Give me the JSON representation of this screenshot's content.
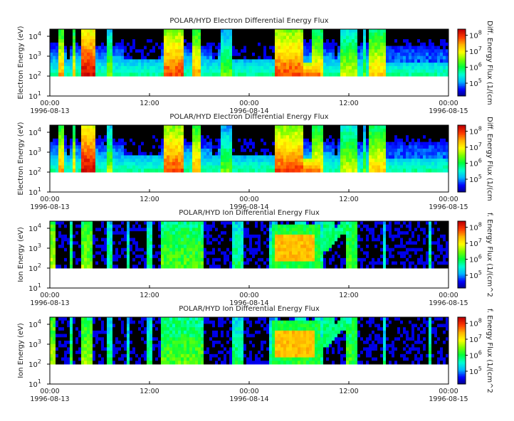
{
  "chart_data": [
    {
      "type": "heatmap",
      "title": "POLAR/HYD  Electron Differential Energy Flux",
      "ylabel": "Electron Energy (eV)",
      "colorbar_label": "Diff. Energy Flux (1/(cm",
      "species": "electron",
      "y_scale": "log",
      "ylim": [
        10,
        20000
      ],
      "data_floor": 100,
      "y_ticks": [
        "10^1",
        "10^2",
        "10^3",
        "10^4"
      ],
      "cbar_ticks": [
        "10^5",
        "10^6",
        "10^7",
        "10^8"
      ],
      "cbar_range": [
        10000,
        200000000
      ],
      "x_ticks": [
        {
          "time": "00:00",
          "date": "1996-08-13"
        },
        {
          "time": "12:00",
          "date": ""
        },
        {
          "time": "00:00",
          "date": "1996-08-14"
        },
        {
          "time": "12:00",
          "date": ""
        },
        {
          "time": "00:00",
          "date": "1996-08-15"
        }
      ],
      "xlim": [
        "1996-08-13 00:00",
        "1996-08-15 00:00"
      ]
    },
    {
      "type": "heatmap",
      "title": "POLAR/HYD  Electron Differential Energy Flux",
      "ylabel": "Electron Energy (eV)",
      "colorbar_label": "Diff. Energy Flux (1/(cm",
      "species": "electron",
      "y_scale": "log",
      "ylim": [
        10,
        20000
      ],
      "data_floor": 100,
      "y_ticks": [
        "10^1",
        "10^2",
        "10^3",
        "10^4"
      ],
      "cbar_ticks": [
        "10^5",
        "10^6",
        "10^7",
        "10^8"
      ],
      "cbar_range": [
        10000,
        200000000
      ],
      "x_ticks": [
        {
          "time": "00:00",
          "date": "1996-08-13"
        },
        {
          "time": "12:00",
          "date": ""
        },
        {
          "time": "00:00",
          "date": "1996-08-14"
        },
        {
          "time": "12:00",
          "date": ""
        },
        {
          "time": "00:00",
          "date": "1996-08-15"
        }
      ],
      "xlim": [
        "1996-08-13 00:00",
        "1996-08-15 00:00"
      ]
    },
    {
      "type": "heatmap",
      "title": "POLAR/HYD  Ion Differential Energy Flux",
      "ylabel": "Ion Energy (eV)",
      "colorbar_label": "f. Energy Flux (1/(cm^2",
      "species": "ion",
      "y_scale": "log",
      "ylim": [
        10,
        20000
      ],
      "data_floor": 100,
      "y_ticks": [
        "10^1",
        "10^2",
        "10^3",
        "10^4"
      ],
      "cbar_ticks": [
        "10^5",
        "10^6",
        "10^7",
        "10^8"
      ],
      "cbar_range": [
        10000,
        200000000
      ],
      "x_ticks": [
        {
          "time": "00:00",
          "date": "1996-08-13"
        },
        {
          "time": "12:00",
          "date": ""
        },
        {
          "time": "00:00",
          "date": "1996-08-14"
        },
        {
          "time": "12:00",
          "date": ""
        },
        {
          "time": "00:00",
          "date": "1996-08-15"
        }
      ],
      "xlim": [
        "1996-08-13 00:00",
        "1996-08-15 00:00"
      ]
    },
    {
      "type": "heatmap",
      "title": "POLAR/HYD  Ion Differential Energy Flux",
      "ylabel": "Ion Energy (eV)",
      "colorbar_label": "f. Energy Flux (1/(cm^2",
      "species": "ion",
      "y_scale": "log",
      "ylim": [
        10,
        20000
      ],
      "data_floor": 100,
      "y_ticks": [
        "10^1",
        "10^2",
        "10^3",
        "10^4"
      ],
      "cbar_ticks": [
        "10^5",
        "10^6",
        "10^7",
        "10^8"
      ],
      "cbar_range": [
        10000,
        200000000
      ],
      "x_ticks": [
        {
          "time": "00:00",
          "date": "1996-08-13"
        },
        {
          "time": "12:00",
          "date": ""
        },
        {
          "time": "00:00",
          "date": "1996-08-14"
        },
        {
          "time": "12:00",
          "date": ""
        },
        {
          "time": "00:00",
          "date": "1996-08-15"
        }
      ],
      "xlim": [
        "1996-08-13 00:00",
        "1996-08-15 00:00"
      ]
    }
  ],
  "colormap": [
    "#000080",
    "#0000ff",
    "#00b4ff",
    "#00ffd2",
    "#00ff3c",
    "#78ff00",
    "#ffff00",
    "#ffb400",
    "#ff3c00",
    "#c00000"
  ]
}
